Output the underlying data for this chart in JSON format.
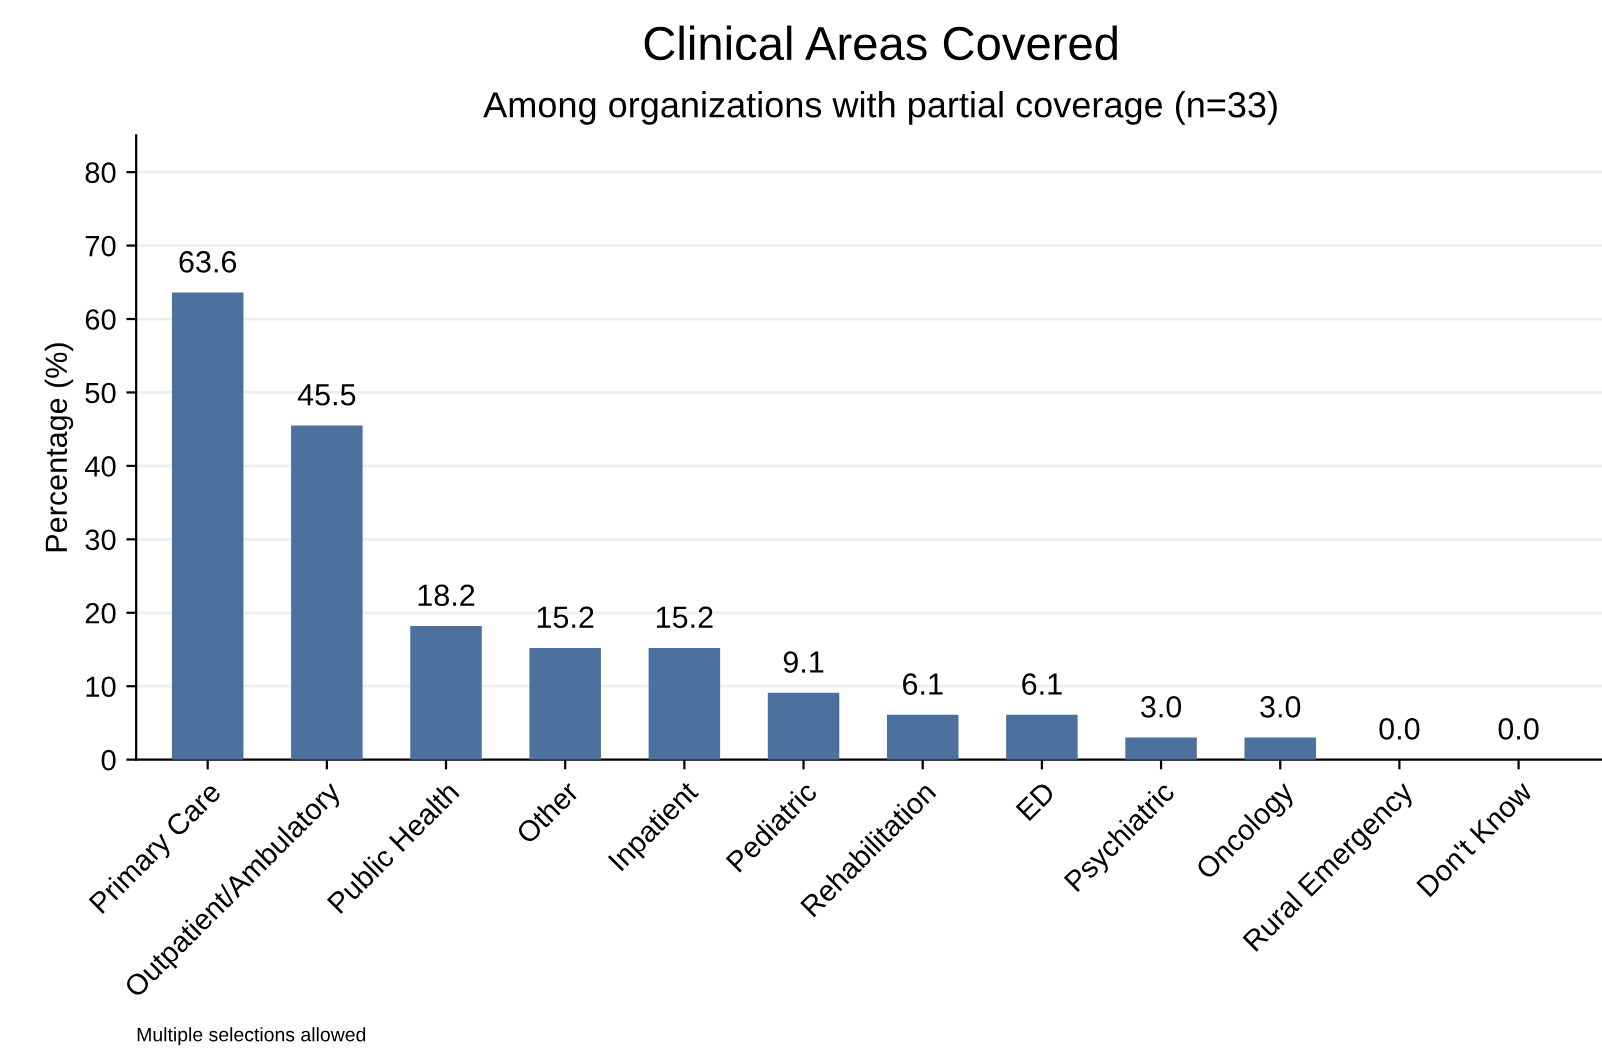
{
  "chart_data": {
    "type": "bar",
    "title": "Clinical Areas Covered",
    "subtitle": "Among organizations with partial coverage (n=33)",
    "ylabel": "Percentage (%)",
    "categories": [
      "Primary Care",
      "Outpatient/Ambulatory",
      "Public Health",
      "Other",
      "Inpatient",
      "Pediatric",
      "Rehabilitation",
      "ED",
      "Psychiatric",
      "Oncology",
      "Rural Emergency",
      "Don't Know"
    ],
    "values": [
      63.6,
      45.5,
      18.2,
      15.2,
      15.2,
      9.1,
      6.1,
      6.1,
      3.0,
      3.0,
      0.0,
      0.0
    ],
    "value_labels": [
      "63.6",
      "45.5",
      "18.2",
      "15.2",
      "15.2",
      "9.1",
      "6.1",
      "6.1",
      "3.0",
      "3.0",
      "0.0",
      "0.0"
    ],
    "color": "#4c719f",
    "ylim": [
      0,
      85
    ],
    "yticks": [
      0,
      10,
      20,
      30,
      40,
      50,
      60,
      70,
      80
    ],
    "grid": "y",
    "legend": false,
    "annotations": [
      "Multiple selections allowed"
    ]
  }
}
